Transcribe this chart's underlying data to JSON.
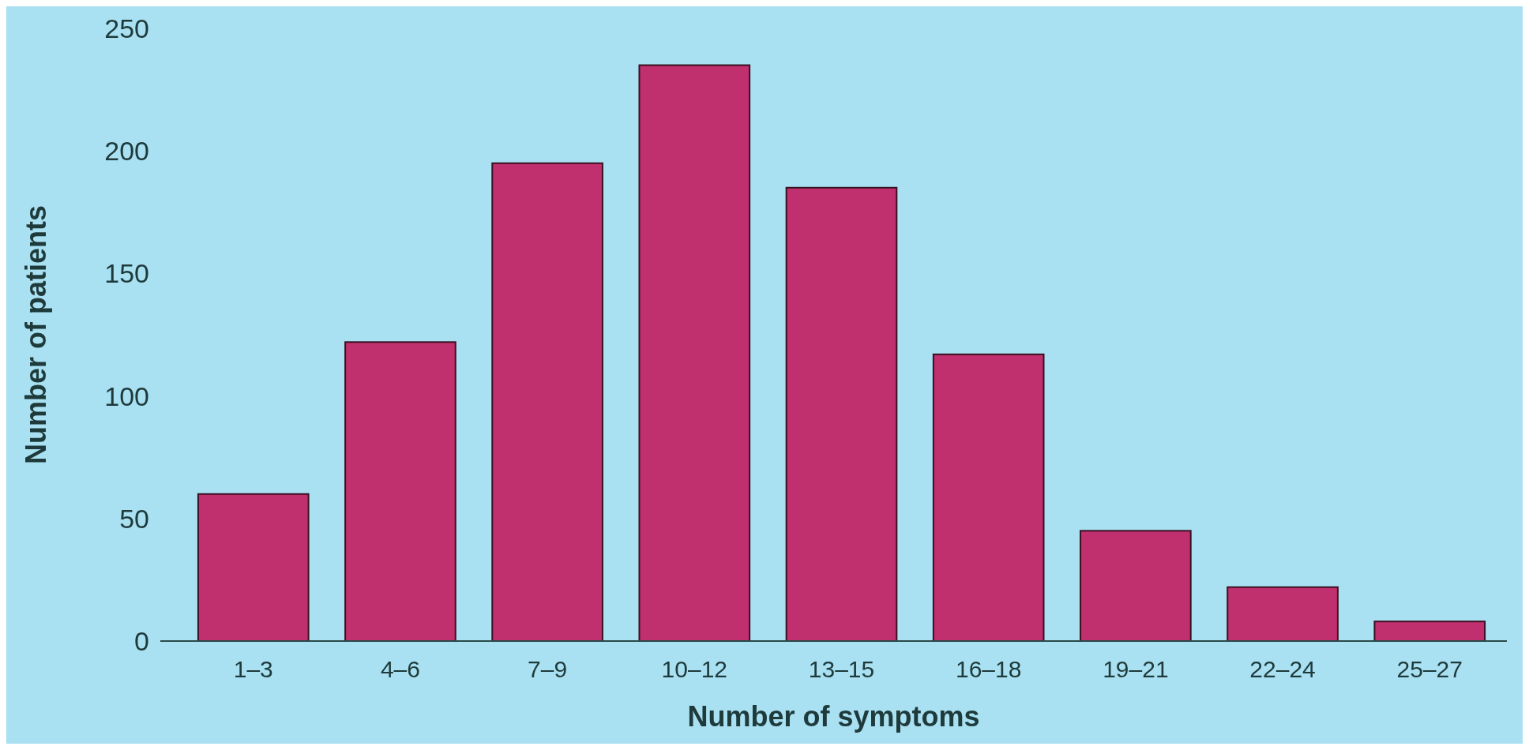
{
  "chart_data": {
    "type": "bar",
    "xlabel": "Number of symptoms",
    "ylabel": "Number of patients",
    "categories": [
      "1–3",
      "4–6",
      "7–9",
      "10–12",
      "13–15",
      "16–18",
      "19–21",
      "22–24",
      "25–27"
    ],
    "values": [
      60,
      122,
      195,
      235,
      185,
      117,
      45,
      22,
      8
    ],
    "color": "#c0306f",
    "ylim": [
      0,
      250
    ],
    "yticks": [
      0,
      50,
      100,
      150,
      200,
      250
    ],
    "grid": false
  }
}
